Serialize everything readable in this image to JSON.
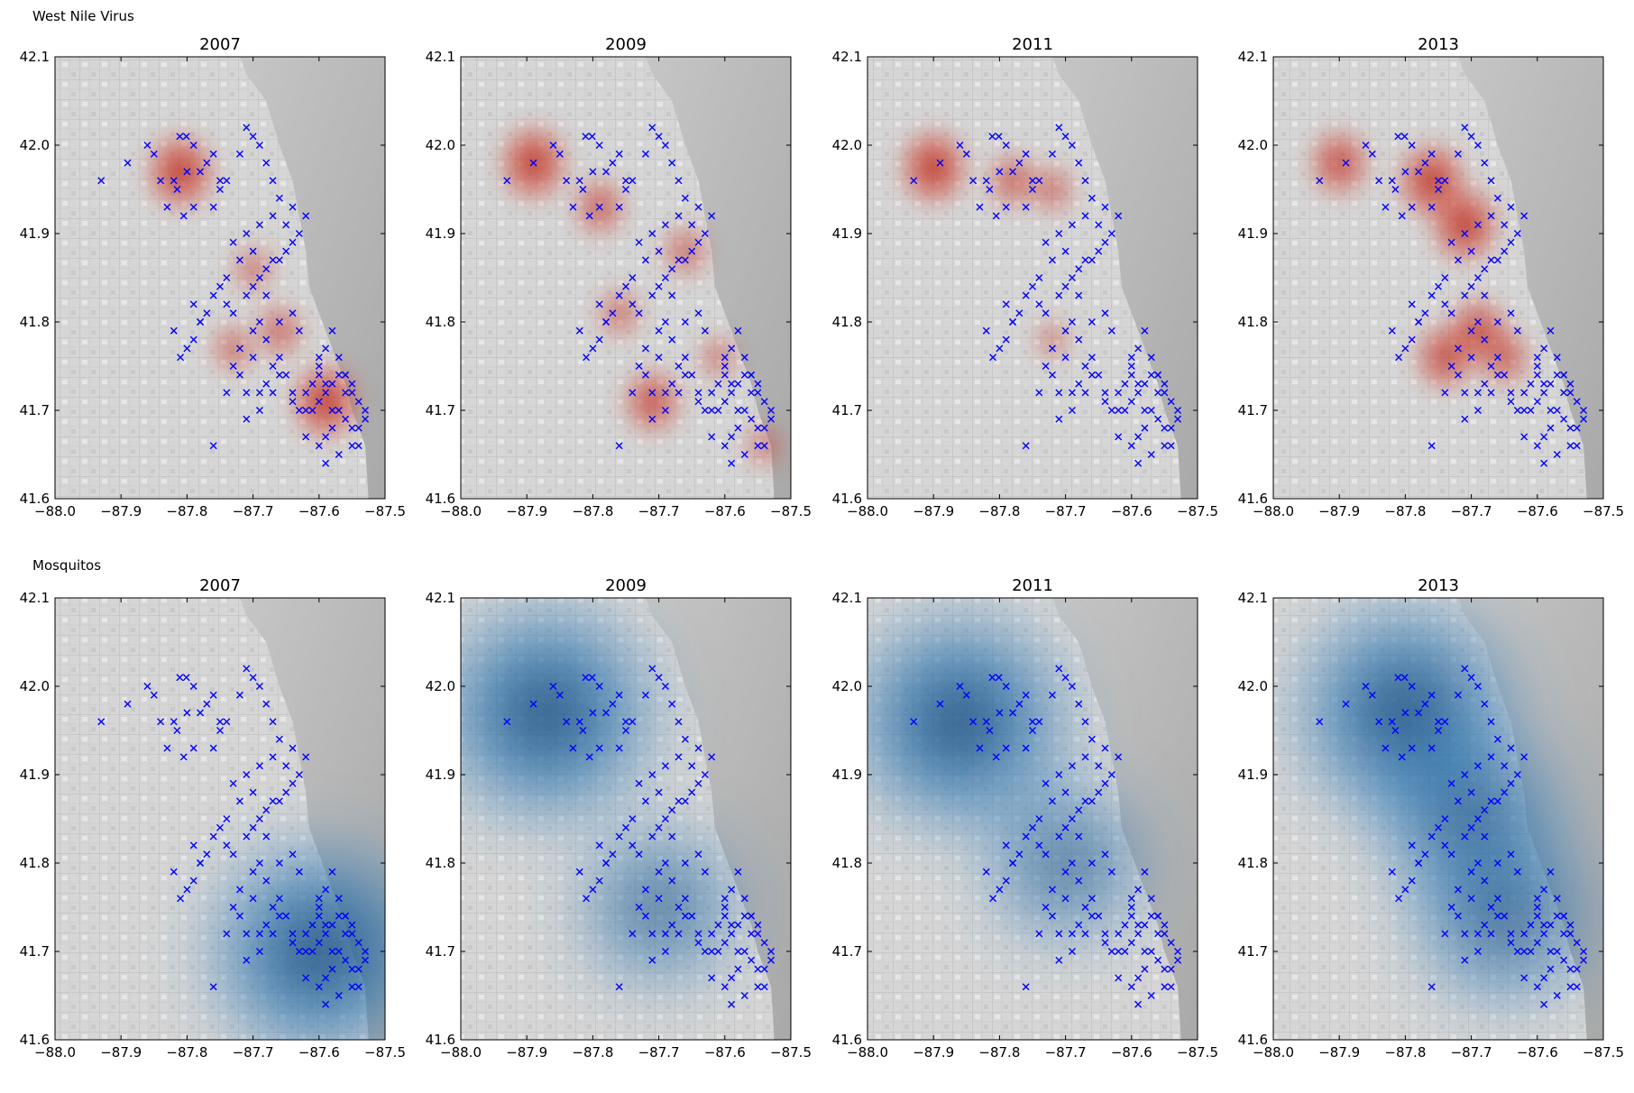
{
  "figure": {
    "row_titles": [
      "West Nile Virus",
      "Mosquitos"
    ]
  },
  "colors": {
    "virus_heat": "#c0392b",
    "mosquito_heat": "#1f5a8c",
    "trap_marker": "#0000ff",
    "map_base": "#d9d9d9",
    "lake": "#bdbdbd"
  },
  "chart_data": [
    {
      "type": "scatter",
      "row": "West Nile Virus",
      "title": "2007",
      "xlim": [
        -88.0,
        -87.5
      ],
      "ylim": [
        41.6,
        42.1
      ],
      "xticks": [
        "−88.0",
        "−87.9",
        "−87.8",
        "−87.7",
        "−87.6",
        "−87.5"
      ],
      "yticks": [
        "41.6",
        "41.7",
        "41.8",
        "41.9",
        "42.0",
        "42.1"
      ],
      "hotspots": [
        {
          "x": -87.81,
          "y": 41.97,
          "intensity": 1.0
        },
        {
          "x": -87.59,
          "y": 41.71,
          "intensity": 1.0
        },
        {
          "x": -87.66,
          "y": 41.79,
          "intensity": 0.5
        },
        {
          "x": -87.73,
          "y": 41.77,
          "intensity": 0.4
        },
        {
          "x": -87.7,
          "y": 41.86,
          "intensity": 0.35
        }
      ]
    },
    {
      "type": "scatter",
      "row": "West Nile Virus",
      "title": "2009",
      "xlim": [
        -88.0,
        -87.5
      ],
      "ylim": [
        41.6,
        42.1
      ],
      "xticks": [
        "−88.0",
        "−87.9",
        "−87.8",
        "−87.7",
        "−87.6",
        "−87.5"
      ],
      "yticks": [
        "41.6",
        "41.7",
        "41.8",
        "41.9",
        "42.0",
        "42.1"
      ],
      "hotspots": [
        {
          "x": -87.89,
          "y": 41.98,
          "intensity": 1.0
        },
        {
          "x": -87.79,
          "y": 41.93,
          "intensity": 0.6
        },
        {
          "x": -87.71,
          "y": 41.71,
          "intensity": 0.75
        },
        {
          "x": -87.66,
          "y": 41.88,
          "intensity": 0.45
        },
        {
          "x": -87.76,
          "y": 41.81,
          "intensity": 0.4
        },
        {
          "x": -87.61,
          "y": 41.76,
          "intensity": 0.3
        },
        {
          "x": -87.54,
          "y": 41.66,
          "intensity": 0.3
        }
      ]
    },
    {
      "type": "scatter",
      "row": "West Nile Virus",
      "title": "2011",
      "xlim": [
        -88.0,
        -87.5
      ],
      "ylim": [
        41.6,
        42.1
      ],
      "xticks": [
        "−88.0",
        "−87.9",
        "−87.8",
        "−87.7",
        "−87.6",
        "−87.5"
      ],
      "yticks": [
        "41.6",
        "41.7",
        "41.8",
        "41.9",
        "42.0",
        "42.1"
      ],
      "hotspots": [
        {
          "x": -87.9,
          "y": 41.975,
          "intensity": 1.0
        },
        {
          "x": -87.78,
          "y": 41.96,
          "intensity": 0.55
        },
        {
          "x": -87.72,
          "y": 41.95,
          "intensity": 0.4
        },
        {
          "x": -87.72,
          "y": 41.78,
          "intensity": 0.2
        }
      ]
    },
    {
      "type": "scatter",
      "row": "West Nile Virus",
      "title": "2013",
      "xlim": [
        -88.0,
        -87.5
      ],
      "ylim": [
        41.6,
        42.1
      ],
      "xticks": [
        "−88.0",
        "−87.9",
        "−87.8",
        "−87.7",
        "−87.6",
        "−87.5"
      ],
      "yticks": [
        "41.6",
        "41.7",
        "41.8",
        "41.9",
        "42.0",
        "42.1"
      ],
      "hotspots": [
        {
          "x": -87.9,
          "y": 41.98,
          "intensity": 0.8
        },
        {
          "x": -87.76,
          "y": 41.96,
          "intensity": 1.0
        },
        {
          "x": -87.71,
          "y": 41.91,
          "intensity": 1.0
        },
        {
          "x": -87.69,
          "y": 41.79,
          "intensity": 0.8
        },
        {
          "x": -87.74,
          "y": 41.76,
          "intensity": 0.8
        },
        {
          "x": -87.65,
          "y": 41.76,
          "intensity": 0.6
        }
      ]
    },
    {
      "type": "scatter",
      "row": "Mosquitos",
      "title": "2007",
      "xlim": [
        -88.0,
        -87.5
      ],
      "ylim": [
        41.6,
        42.1
      ],
      "xticks": [
        "−88.0",
        "−87.9",
        "−87.8",
        "−87.7",
        "−87.6",
        "−87.5"
      ],
      "yticks": [
        "41.6",
        "41.7",
        "41.8",
        "41.9",
        "42.0",
        "42.1"
      ],
      "hotspots": [
        {
          "x": -87.6,
          "y": 41.7,
          "intensity": 1.0
        }
      ]
    },
    {
      "type": "scatter",
      "row": "Mosquitos",
      "title": "2009",
      "xlim": [
        -88.0,
        -87.5
      ],
      "ylim": [
        41.6,
        42.1
      ],
      "xticks": [
        "−88.0",
        "−87.9",
        "−87.8",
        "−87.7",
        "−87.6",
        "−87.5"
      ],
      "yticks": [
        "41.6",
        "41.7",
        "41.8",
        "41.9",
        "42.0",
        "42.1"
      ],
      "hotspots": [
        {
          "x": -87.87,
          "y": 41.97,
          "intensity": 1.0
        },
        {
          "x": -87.7,
          "y": 41.75,
          "intensity": 0.55
        }
      ]
    },
    {
      "type": "scatter",
      "row": "Mosquitos",
      "title": "2011",
      "xlim": [
        -88.0,
        -87.5
      ],
      "ylim": [
        41.6,
        42.1
      ],
      "xticks": [
        "−88.0",
        "−87.9",
        "−87.8",
        "−87.7",
        "−87.6",
        "−87.5"
      ],
      "yticks": [
        "41.6",
        "41.7",
        "41.8",
        "41.9",
        "42.0",
        "42.1"
      ],
      "hotspots": [
        {
          "x": -87.86,
          "y": 41.96,
          "intensity": 1.0
        },
        {
          "x": -87.7,
          "y": 41.8,
          "intensity": 0.55
        }
      ]
    },
    {
      "type": "scatter",
      "row": "Mosquitos",
      "title": "2013",
      "xlim": [
        -88.0,
        -87.5
      ],
      "ylim": [
        41.6,
        42.1
      ],
      "xticks": [
        "−88.0",
        "−87.9",
        "−87.8",
        "−87.7",
        "−87.6",
        "−87.5"
      ],
      "yticks": [
        "41.6",
        "41.7",
        "41.8",
        "41.9",
        "42.0",
        "42.1"
      ],
      "hotspots": [
        {
          "x": -87.8,
          "y": 41.97,
          "intensity": 1.0
        },
        {
          "x": -87.7,
          "y": 41.85,
          "intensity": 0.75
        },
        {
          "x": -87.65,
          "y": 41.74,
          "intensity": 0.7
        }
      ]
    }
  ],
  "trap_locations": {
    "x": [
      -87.801,
      -87.811,
      -87.79,
      -87.8,
      -87.82,
      -87.78,
      -87.77,
      -87.76,
      -87.75,
      -87.79,
      -87.805,
      -87.815,
      -87.83,
      -87.84,
      -87.85,
      -87.93,
      -87.89,
      -87.86,
      -87.76,
      -87.75,
      -87.74,
      -87.72,
      -87.71,
      -87.7,
      -87.69,
      -87.68,
      -87.67,
      -87.66,
      -87.67,
      -87.69,
      -87.71,
      -87.73,
      -87.7,
      -87.72,
      -87.74,
      -87.75,
      -87.76,
      -87.78,
      -87.79,
      -87.8,
      -87.81,
      -87.82,
      -87.78,
      -87.77,
      -87.79,
      -87.73,
      -87.74,
      -87.71,
      -87.7,
      -87.69,
      -87.68,
      -87.67,
      -87.65,
      -87.64,
      -87.63,
      -87.62,
      -87.64,
      -87.65,
      -87.66,
      -87.68,
      -87.69,
      -87.7,
      -87.72,
      -87.73,
      -87.71,
      -87.69,
      -87.68,
      -87.67,
      -87.66,
      -87.65,
      -87.64,
      -87.63,
      -87.62,
      -87.61,
      -87.6,
      -87.59,
      -87.58,
      -87.57,
      -87.56,
      -87.55,
      -87.54,
      -87.53,
      -87.55,
      -87.56,
      -87.58,
      -87.59,
      -87.6,
      -87.61,
      -87.62,
      -87.6,
      -87.59,
      -87.58,
      -87.57,
      -87.55,
      -87.54,
      -87.53,
      -87.56,
      -87.57,
      -87.59,
      -87.6,
      -87.63,
      -87.64,
      -87.66,
      -87.68,
      -87.7,
      -87.72,
      -87.74,
      -87.76,
      -87.71,
      -87.69,
      -87.67,
      -87.66,
      -87.64,
      -87.62,
      -87.6,
      -87.58,
      -87.56,
      -87.55,
      -87.54,
      -87.57,
      -87.59
    ],
    "y": [
      42.01,
      42.01,
      42.0,
      41.97,
      41.96,
      41.97,
      41.98,
      41.99,
      41.96,
      41.93,
      41.92,
      41.95,
      41.93,
      41.96,
      41.99,
      41.96,
      41.98,
      42.0,
      41.93,
      41.95,
      41.96,
      41.99,
      42.02,
      42.01,
      42.0,
      41.98,
      41.96,
      41.94,
      41.92,
      41.91,
      41.9,
      41.89,
      41.88,
      41.87,
      41.85,
      41.84,
      41.83,
      41.8,
      41.78,
      41.77,
      41.76,
      41.79,
      41.8,
      41.81,
      41.82,
      41.81,
      41.82,
      41.83,
      41.84,
      41.85,
      41.86,
      41.87,
      41.88,
      41.89,
      41.9,
      41.92,
      41.93,
      41.91,
      41.87,
      41.83,
      41.8,
      41.79,
      41.77,
      41.75,
      41.72,
      41.72,
      41.73,
      41.75,
      41.76,
      41.74,
      41.71,
      41.7,
      41.72,
      41.73,
      41.75,
      41.77,
      41.79,
      41.76,
      41.74,
      41.73,
      41.71,
      41.7,
      41.68,
      41.69,
      41.7,
      41.72,
      41.74,
      41.7,
      41.67,
      41.66,
      41.67,
      41.68,
      41.7,
      41.66,
      41.68,
      41.69,
      41.72,
      41.74,
      41.73,
      41.76,
      41.79,
      41.81,
      41.8,
      41.78,
      41.76,
      41.74,
      41.72,
      41.66,
      41.69,
      41.7,
      41.72,
      41.74,
      41.72,
      41.7,
      41.71,
      41.73,
      41.74,
      41.72,
      41.66,
      41.65,
      41.64
    ]
  }
}
